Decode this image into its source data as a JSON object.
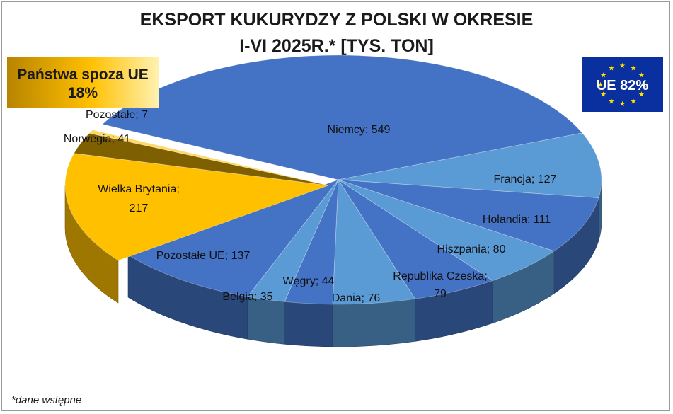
{
  "title_line1": "EKSPORT KUKURYDZY Z POLSKI W OKRESIE",
  "title_line2": "I-VI 2025R.* [TYS. TON]",
  "non_eu_label_line1": "Państwa spoza UE",
  "non_eu_label_line2": "18%",
  "eu_label": "UE 82%",
  "footnote": "*dane wstępne",
  "colors": {
    "eu_dark": "#4472c4",
    "eu_light": "#5b9bd5",
    "non_eu_main": "#ffc000",
    "non_eu_light": "#ffd966",
    "non_eu_dark": "#7f6000",
    "eu_flag_bg": "#0a2f9f",
    "eu_flag_star": "#ffdd00"
  },
  "chart_data": {
    "type": "pie",
    "title": "EKSPORT KUKURYDZY Z POLSKI W OKRESIE I-VI 2025R.* [TYS. TON]",
    "unit": "tys. ton",
    "slices": [
      {
        "name": "Niemcy",
        "value": 549,
        "group": "UE"
      },
      {
        "name": "Francja",
        "value": 127,
        "group": "UE"
      },
      {
        "name": "Holandia",
        "value": 111,
        "group": "UE"
      },
      {
        "name": "Hiszpania",
        "value": 80,
        "group": "UE"
      },
      {
        "name": "Republika Czeska",
        "value": 79,
        "group": "UE"
      },
      {
        "name": "Dania",
        "value": 76,
        "group": "UE"
      },
      {
        "name": "Węgry",
        "value": 44,
        "group": "UE"
      },
      {
        "name": "Belgia",
        "value": 35,
        "group": "UE"
      },
      {
        "name": "Pozostałe UE",
        "value": 137,
        "group": "UE"
      },
      {
        "name": "Wielka Brytania",
        "value": 217,
        "group": "Państwa spoza UE"
      },
      {
        "name": "Norwegia",
        "value": 41,
        "group": "Państwa spoza UE"
      },
      {
        "name": "Pozostałe",
        "value": 7,
        "group": "Państwa spoza UE"
      }
    ],
    "labels": [
      "Niemcy; 549",
      "Francja; 127",
      "Holandia; 111",
      "Hiszpania; 80",
      "Republika Czeska;",
      "79",
      "Dania; 76",
      "Węgry; 44",
      "Belgia; 35",
      "Pozostałe UE; 137",
      "Wielka Brytania;",
      "217",
      "Norwegia; 41",
      "Pozostałe; 7"
    ],
    "group_shares": [
      {
        "name": "UE",
        "percent": 82
      },
      {
        "name": "Państwa spoza UE",
        "percent": 18
      }
    ]
  }
}
